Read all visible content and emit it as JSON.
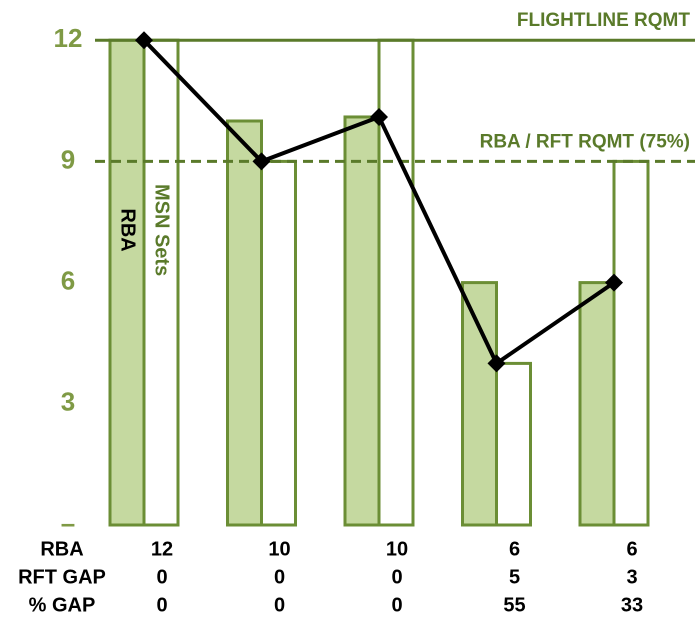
{
  "chart_data": {
    "type": "bar",
    "categories": [
      null,
      null,
      null,
      null,
      null
    ],
    "series": [
      {
        "name": "RBA",
        "color": "#c5d9a0",
        "stroke": "#6b8e35",
        "text_color": "#000000",
        "values": [
          12,
          10,
          10.1,
          6,
          6
        ]
      },
      {
        "name": "MSN Sets",
        "color": "#ffffff",
        "stroke": "#6b8e35",
        "text_color": "#5a7a2a",
        "values": [
          12,
          9,
          12,
          4,
          9
        ]
      },
      {
        "kind": "line",
        "color": "#000000",
        "values": [
          12,
          9,
          10.1,
          4,
          6
        ]
      }
    ],
    "reference_lines": [
      {
        "label": "FLIGHTLINE RQMT",
        "value": 12,
        "style": "solid",
        "color": "#5a7a2a"
      },
      {
        "label": "RBA / RFT RQMT (75%)",
        "value": 9,
        "style": "dashed",
        "color": "#5a7a2a"
      }
    ],
    "ylim": [
      0,
      12.5
    ],
    "yticks": [
      {
        "value": 0,
        "label": "–"
      },
      3,
      6,
      9,
      12
    ],
    "table": {
      "rows": [
        {
          "label": "RBA",
          "values": [
            12,
            10,
            10,
            6,
            6
          ]
        },
        {
          "label": "RFT GAP",
          "values": [
            0,
            0,
            0,
            5,
            3
          ]
        },
        {
          "label": "% GAP",
          "values": [
            0,
            0,
            0,
            55,
            33
          ]
        }
      ]
    }
  }
}
